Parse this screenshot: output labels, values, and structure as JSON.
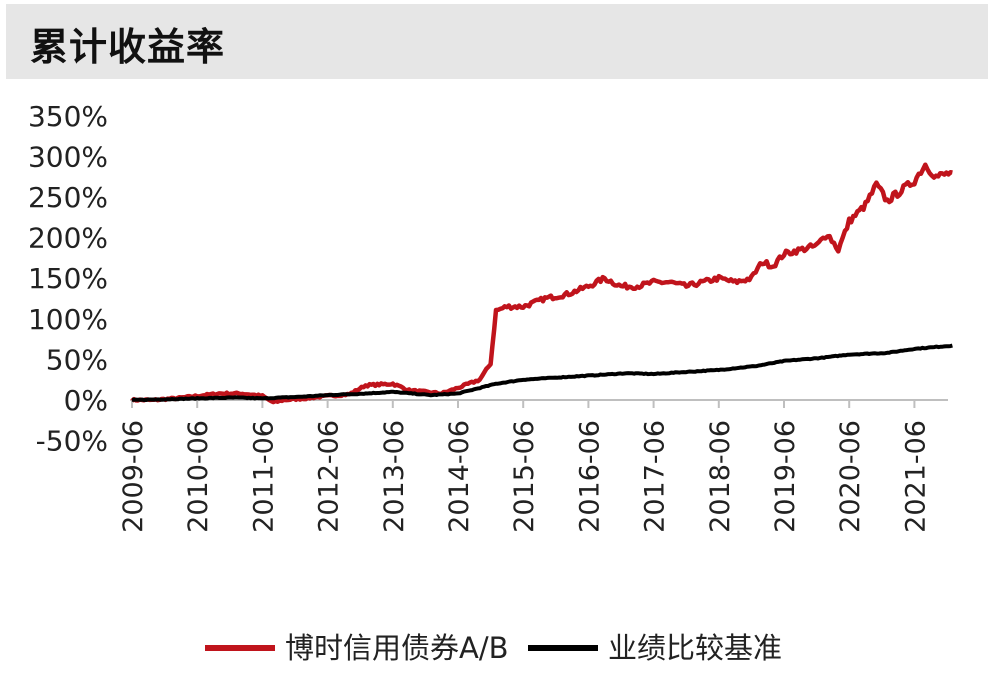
{
  "header": {
    "title": "累计收益率"
  },
  "chart_data": {
    "type": "line",
    "title": "累计收益率",
    "xlabel": "",
    "ylabel": "",
    "ylim": [
      -50,
      350
    ],
    "y_ticks": [
      "350%",
      "300%",
      "250%",
      "200%",
      "150%",
      "100%",
      "50%",
      "0%",
      "-50%"
    ],
    "x_ticks": [
      "2009-06",
      "2010-06",
      "2011-06",
      "2012-06",
      "2013-06",
      "2014-06",
      "2015-06",
      "2016-06",
      "2017-06",
      "2018-06",
      "2019-06",
      "2020-06",
      "2021-06"
    ],
    "grid": false,
    "legend_position": "bottom",
    "series": [
      {
        "name": "博时信用债券A/B",
        "color": "#c0141c",
        "points": [
          [
            "2009-06",
            0
          ],
          [
            "2009-10",
            0
          ],
          [
            "2010-02",
            2
          ],
          [
            "2010-06",
            5
          ],
          [
            "2010-10",
            8
          ],
          [
            "2011-02",
            8
          ],
          [
            "2011-06",
            5
          ],
          [
            "2011-08",
            -3
          ],
          [
            "2011-10",
            0
          ],
          [
            "2012-02",
            2
          ],
          [
            "2012-06",
            5
          ],
          [
            "2012-10",
            7
          ],
          [
            "2013-01",
            18
          ],
          [
            "2013-06",
            20
          ],
          [
            "2013-09",
            12
          ],
          [
            "2013-12",
            10
          ],
          [
            "2014-03",
            8
          ],
          [
            "2014-06",
            15
          ],
          [
            "2014-10",
            25
          ],
          [
            "2014-12",
            45
          ],
          [
            "2015-01",
            110
          ],
          [
            "2015-03",
            115
          ],
          [
            "2015-06",
            115
          ],
          [
            "2015-10",
            125
          ],
          [
            "2016-02",
            130
          ],
          [
            "2016-06",
            140
          ],
          [
            "2016-09",
            150
          ],
          [
            "2016-12",
            140
          ],
          [
            "2017-03",
            140
          ],
          [
            "2017-06",
            145
          ],
          [
            "2017-09",
            145
          ],
          [
            "2017-12",
            140
          ],
          [
            "2018-03",
            145
          ],
          [
            "2018-06",
            150
          ],
          [
            "2018-09",
            145
          ],
          [
            "2018-12",
            150
          ],
          [
            "2019-02",
            170
          ],
          [
            "2019-04",
            165
          ],
          [
            "2019-06",
            180
          ],
          [
            "2019-09",
            185
          ],
          [
            "2019-12",
            190
          ],
          [
            "2020-02",
            205
          ],
          [
            "2020-04",
            185
          ],
          [
            "2020-06",
            220
          ],
          [
            "2020-09",
            240
          ],
          [
            "2020-11",
            265
          ],
          [
            "2021-01",
            245
          ],
          [
            "2021-04",
            260
          ],
          [
            "2021-06",
            270
          ],
          [
            "2021-08",
            290
          ],
          [
            "2021-10",
            275
          ],
          [
            "2022-01",
            280
          ]
        ]
      },
      {
        "name": "业绩比较基准",
        "color": "#000000",
        "points": [
          [
            "2009-06",
            0
          ],
          [
            "2010-01",
            1
          ],
          [
            "2010-06",
            2
          ],
          [
            "2011-01",
            3
          ],
          [
            "2011-06",
            2
          ],
          [
            "2012-01",
            4
          ],
          [
            "2012-06",
            6
          ],
          [
            "2013-01",
            8
          ],
          [
            "2013-06",
            10
          ],
          [
            "2014-01",
            6
          ],
          [
            "2014-06",
            8
          ],
          [
            "2015-01",
            20
          ],
          [
            "2015-06",
            25
          ],
          [
            "2016-01",
            28
          ],
          [
            "2016-06",
            30
          ],
          [
            "2017-01",
            33
          ],
          [
            "2017-06",
            32
          ],
          [
            "2018-01",
            35
          ],
          [
            "2018-06",
            37
          ],
          [
            "2019-01",
            42
          ],
          [
            "2019-06",
            48
          ],
          [
            "2020-01",
            52
          ],
          [
            "2020-06",
            56
          ],
          [
            "2021-01",
            58
          ],
          [
            "2021-06",
            63
          ],
          [
            "2022-01",
            67
          ]
        ]
      }
    ]
  }
}
